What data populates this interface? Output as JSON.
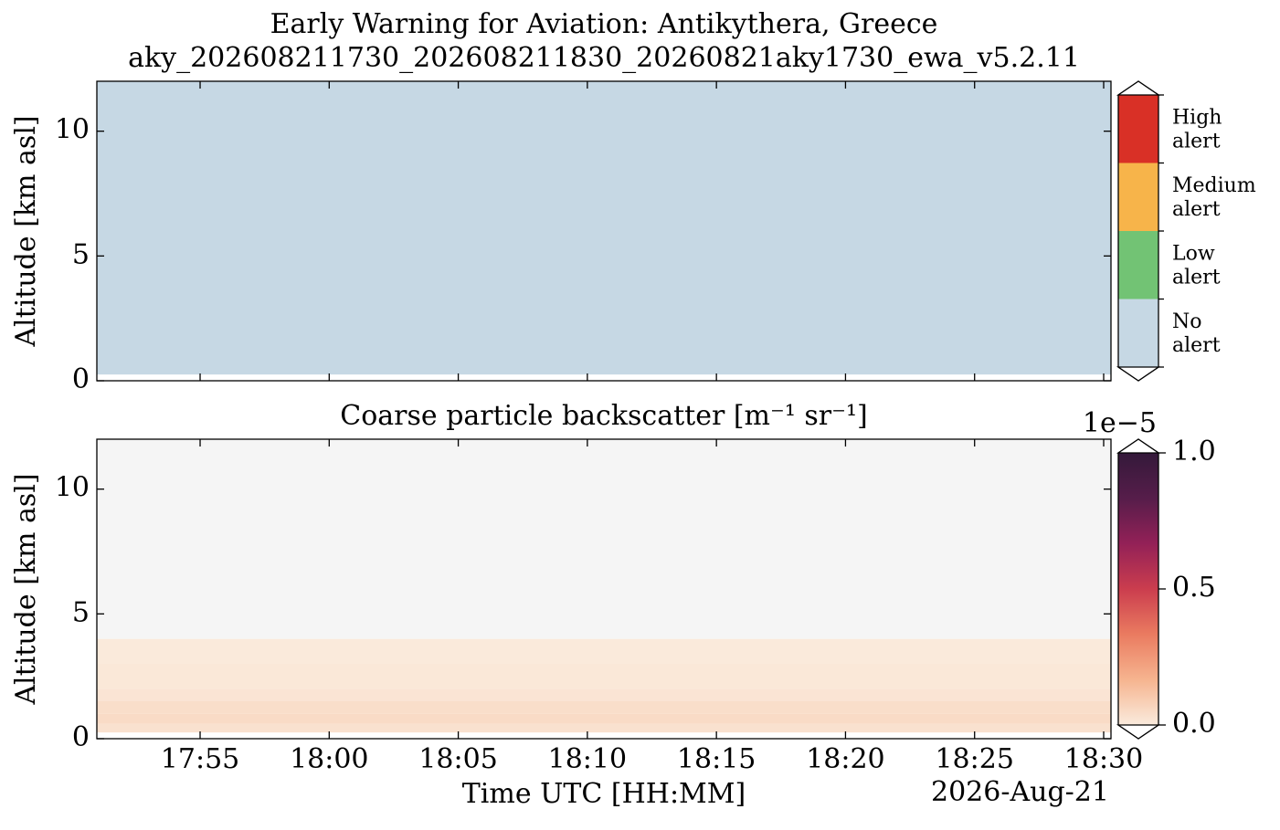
{
  "chart_data": [
    {
      "type": "alert-heatmap",
      "title": [
        "Early Warning for Aviation: Antikythera, Greece",
        "aky_202608211730_202608211830_20260821aky1730_ewa_v5.2.11"
      ],
      "ylabel": "Altitude [km asl]",
      "xlim": [
        "17:51",
        "18:30"
      ],
      "xticks": [
        "17:55",
        "18:00",
        "18:05",
        "18:10",
        "18:15",
        "18:20",
        "18:25",
        "18:30"
      ],
      "ylim": [
        0,
        12
      ],
      "yticks": [
        0,
        5,
        10
      ],
      "z_bins": [
        0.25,
        12
      ],
      "values": [
        0
      ],
      "levels": [
        {
          "label": [
            "No",
            "alert"
          ],
          "color": "#c6d8e4"
        },
        {
          "label": [
            "Low",
            "alert"
          ],
          "color": "#72c374"
        },
        {
          "label": [
            "Medium",
            "alert"
          ],
          "color": "#f7b44a"
        },
        {
          "label": [
            "High",
            "alert"
          ],
          "color": "#d93026"
        }
      ]
    },
    {
      "type": "heatmap",
      "title": "Coarse particle backscatter [m⁻¹ sr⁻¹]",
      "xlabel": "Time UTC [HH:MM]",
      "date": "2026-Aug-21",
      "ylabel": "Altitude [km asl]",
      "xlim": [
        "17:51",
        "18:30"
      ],
      "xticks": [
        "17:55",
        "18:00",
        "18:05",
        "18:10",
        "18:15",
        "18:20",
        "18:25",
        "18:30"
      ],
      "ylim": [
        0,
        12
      ],
      "yticks": [
        0,
        5,
        10
      ],
      "z_bins": [
        0.25,
        0.6,
        1.0,
        1.5,
        2.0,
        3.0,
        4.0,
        12
      ],
      "values": [
        0.03,
        0.05,
        0.04,
        0.02,
        0.01,
        0.004,
        null
      ],
      "background": "#f5f5f5",
      "colors": [
        "#faebdd",
        "#f6b48f",
        "#ea7b60",
        "#cb3d4e",
        "#932157",
        "#561d4a",
        "#34193a"
      ],
      "clim": [
        0,
        1.0
      ],
      "cticks": [
        {
          "value": 0,
          "label": "0.0"
        },
        {
          "value": 0.5,
          "label": "0.5"
        },
        {
          "value": 1.0,
          "label": "1.0"
        }
      ],
      "offset_label": "1e−5"
    }
  ]
}
